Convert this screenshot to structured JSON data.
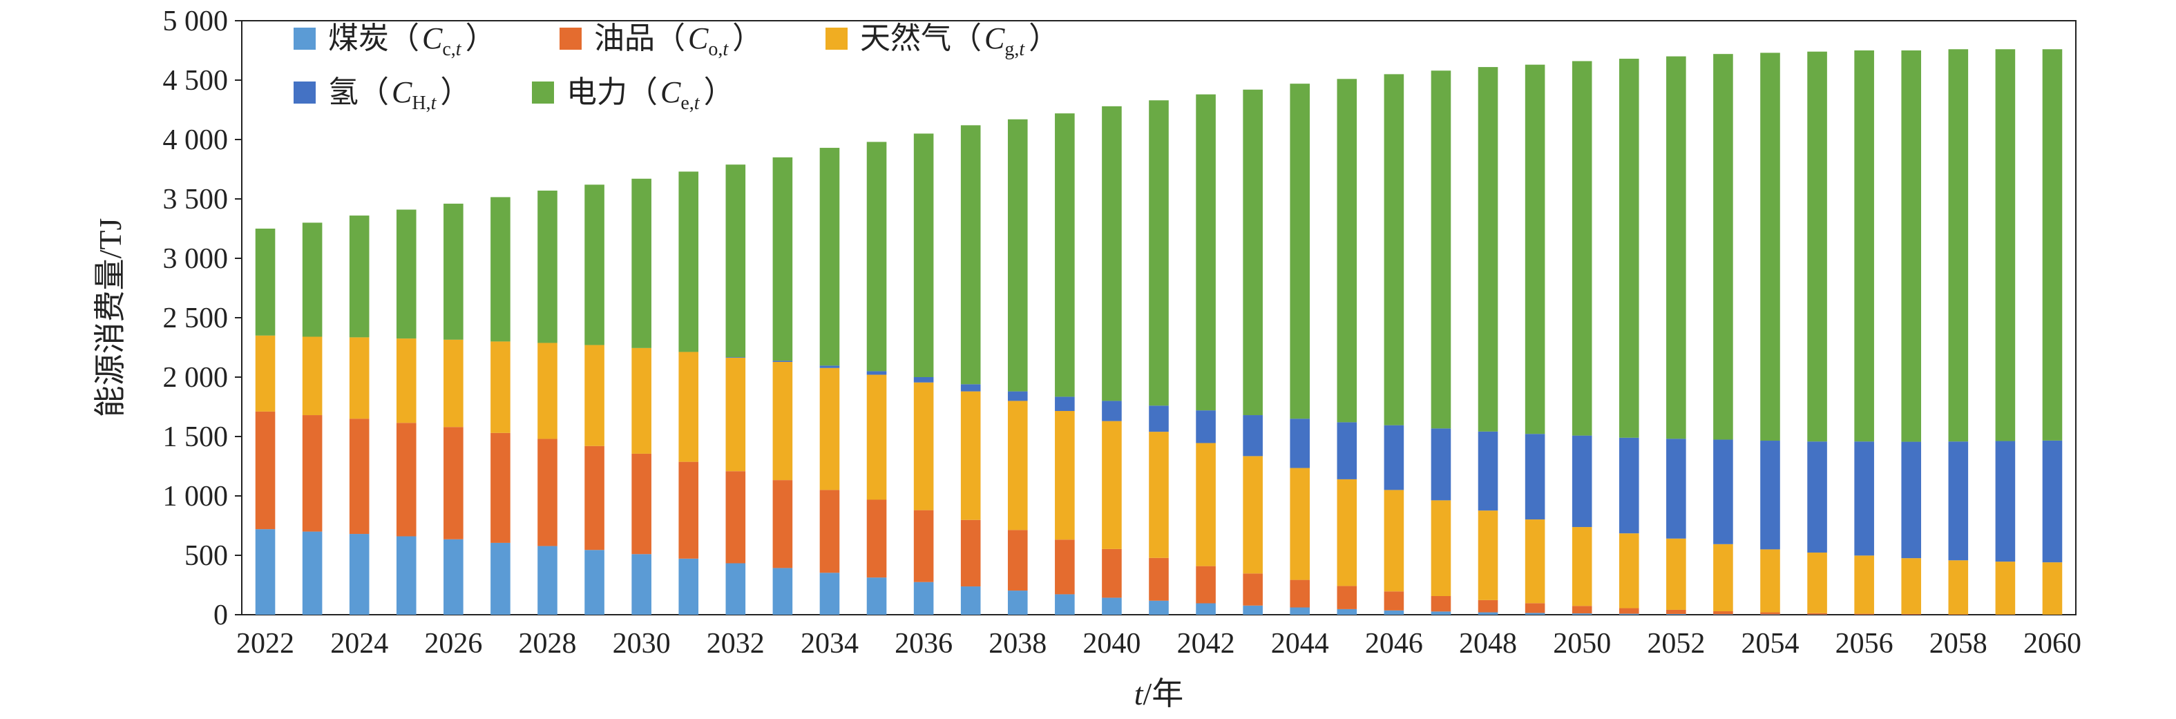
{
  "chart_data": {
    "type": "bar",
    "stacked": true,
    "ylabel": "能源消费量/TJ",
    "xlabel_var": "t",
    "xlabel_rest": "/年",
    "ylim": [
      0,
      5000
    ],
    "yticks": [
      0,
      500,
      1000,
      1500,
      2000,
      2500,
      3000,
      3500,
      4000,
      4500,
      5000
    ],
    "ytick_labels": [
      "0",
      "500",
      "1 000",
      "1 500",
      "2 000",
      "2 500",
      "3 000",
      "3 500",
      "4 000",
      "4 500",
      "5 000"
    ],
    "xtick_labels": [
      "2022",
      "2024",
      "2026",
      "2028",
      "2030",
      "2032",
      "2034",
      "2036",
      "2038",
      "2040",
      "2042",
      "2044",
      "2046",
      "2048",
      "2050",
      "2052",
      "2054",
      "2056",
      "2058",
      "2060"
    ],
    "grid": false,
    "legend_position": "top-left",
    "categories": [
      2022,
      2023,
      2024,
      2025,
      2026,
      2027,
      2028,
      2029,
      2030,
      2031,
      2032,
      2033,
      2034,
      2035,
      2036,
      2037,
      2038,
      2039,
      2040,
      2041,
      2042,
      2043,
      2044,
      2045,
      2046,
      2047,
      2048,
      2049,
      2050,
      2051,
      2052,
      2053,
      2054,
      2055,
      2056,
      2057,
      2058,
      2059,
      2060
    ],
    "series": [
      {
        "name": "煤炭（Cc,t）",
        "legend_cn": "煤炭（",
        "symbol": "C",
        "subscript": "c,",
        "subscript_var": "t",
        "color": "#5B9BD5",
        "values": [
          720,
          700,
          680,
          660,
          635,
          605,
          578,
          545,
          510,
          472,
          433,
          393,
          353,
          313,
          275,
          238,
          203,
          172,
          143,
          118,
          96,
          77,
          61,
          47,
          36,
          27,
          20,
          15,
          11,
          8,
          6,
          4,
          3,
          2,
          1,
          1,
          0,
          0,
          0
        ]
      },
      {
        "name": "油品（Co,t）",
        "legend_cn": "油品（",
        "symbol": "C",
        "subscript": "o,",
        "subscript_var": "t",
        "color": "#E46C2F",
        "values": [
          990,
          980,
          970,
          955,
          945,
          925,
          902,
          875,
          845,
          815,
          775,
          740,
          697,
          655,
          605,
          560,
          510,
          460,
          410,
          360,
          313,
          270,
          232,
          195,
          160,
          130,
          103,
          82,
          63,
          47,
          35,
          25,
          17,
          11,
          7,
          5,
          3,
          2,
          1
        ]
      },
      {
        "name": "天然气（Cg,t）",
        "legend_cn": "天然气（",
        "symbol": "C",
        "subscript": "g,",
        "subscript_var": "t",
        "color": "#F0AD22",
        "values": [
          640,
          660,
          685,
          710,
          735,
          770,
          808,
          850,
          890,
          925,
          955,
          995,
          1027,
          1052,
          1075,
          1082,
          1087,
          1083,
          1077,
          1062,
          1036,
          988,
          942,
          898,
          854,
          806,
          754,
          705,
          664,
          630,
          600,
          565,
          530,
          510,
          490,
          470,
          455,
          445,
          440
        ]
      },
      {
        "name": "氢（CH,t）",
        "legend_cn": "氢（",
        "symbol": "C",
        "subscript": "H,",
        "subscript_var": "t",
        "color": "#4472C4",
        "values": [
          0,
          0,
          0,
          0,
          0,
          0,
          0,
          0,
          0,
          0,
          5,
          10,
          20,
          30,
          45,
          60,
          80,
          120,
          170,
          220,
          275,
          345,
          415,
          480,
          545,
          605,
          665,
          720,
          770,
          805,
          840,
          880,
          915,
          935,
          960,
          980,
          1000,
          1015,
          1025
        ]
      },
      {
        "name": "电力（Ce,t）",
        "legend_cn": "电力（",
        "symbol": "C",
        "subscript": "e,",
        "subscript_var": "t",
        "color": "#6AAA45",
        "values": [
          900,
          960,
          1025,
          1085,
          1145,
          1215,
          1282,
          1350,
          1425,
          1518,
          1621,
          1712,
          1833,
          1930,
          2050,
          2180,
          2290,
          2385,
          2480,
          2570,
          2660,
          2740,
          2820,
          2890,
          2955,
          3012,
          3068,
          3108,
          3152,
          3190,
          3219,
          3246,
          3265,
          3282,
          3292,
          3294,
          3302,
          3298,
          3294
        ]
      }
    ]
  }
}
